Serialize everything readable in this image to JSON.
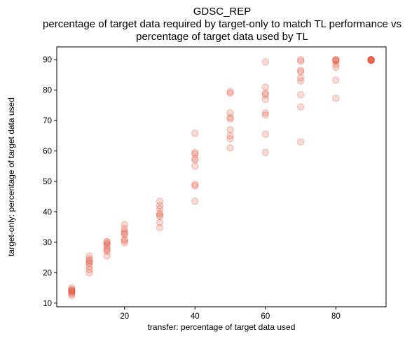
{
  "chart_data": {
    "type": "scatter",
    "title_lines": [
      "GDSC_REP",
      "percentage of target data required by target-only to match TL performance vs",
      "percentage of target data used by TL"
    ],
    "xlabel": "transfer: percentage of target data used",
    "ylabel": "target-only: percentage of target data used",
    "xlim": [
      0.75,
      94.25
    ],
    "ylim": [
      8.8,
      94.2
    ],
    "x_ticks": [
      20,
      40,
      60,
      80
    ],
    "y_ticks": [
      10,
      20,
      30,
      40,
      50,
      60,
      70,
      80,
      90
    ],
    "grid": false,
    "color": "#e34a33",
    "points": [
      {
        "x": 5,
        "y": 12.5
      },
      {
        "x": 5,
        "y": 13.0
      },
      {
        "x": 5,
        "y": 13.5
      },
      {
        "x": 5,
        "y": 14.0
      },
      {
        "x": 5,
        "y": 14.5
      },
      {
        "x": 5,
        "y": 15.0
      },
      {
        "x": 5,
        "y": 13.8
      },
      {
        "x": 5,
        "y": 14.2
      },
      {
        "x": 10,
        "y": 20.0
      },
      {
        "x": 10,
        "y": 21.0
      },
      {
        "x": 10,
        "y": 22.0
      },
      {
        "x": 10,
        "y": 23.0
      },
      {
        "x": 10,
        "y": 23.5
      },
      {
        "x": 10,
        "y": 24.0
      },
      {
        "x": 10,
        "y": 24.5
      },
      {
        "x": 10,
        "y": 25.5
      },
      {
        "x": 15,
        "y": 25.5
      },
      {
        "x": 15,
        "y": 27.0
      },
      {
        "x": 15,
        "y": 27.5
      },
      {
        "x": 15,
        "y": 28.0
      },
      {
        "x": 15,
        "y": 29.0
      },
      {
        "x": 15,
        "y": 29.5
      },
      {
        "x": 15,
        "y": 30.0
      },
      {
        "x": 15,
        "y": 30.3
      },
      {
        "x": 20,
        "y": 29.8
      },
      {
        "x": 20,
        "y": 30.5
      },
      {
        "x": 20,
        "y": 31.0
      },
      {
        "x": 20,
        "y": 32.5
      },
      {
        "x": 20,
        "y": 33.0
      },
      {
        "x": 20,
        "y": 33.5
      },
      {
        "x": 20,
        "y": 34.5
      },
      {
        "x": 20,
        "y": 35.8
      },
      {
        "x": 30,
        "y": 34.8
      },
      {
        "x": 30,
        "y": 36.5
      },
      {
        "x": 30,
        "y": 38.5
      },
      {
        "x": 30,
        "y": 39.0
      },
      {
        "x": 30,
        "y": 39.5
      },
      {
        "x": 30,
        "y": 41.0
      },
      {
        "x": 30,
        "y": 42.0
      },
      {
        "x": 30,
        "y": 43.5
      },
      {
        "x": 40,
        "y": 43.5
      },
      {
        "x": 40,
        "y": 48.5
      },
      {
        "x": 40,
        "y": 49.0
      },
      {
        "x": 40,
        "y": 55.0
      },
      {
        "x": 40,
        "y": 57.0
      },
      {
        "x": 40,
        "y": 57.5
      },
      {
        "x": 40,
        "y": 59.0
      },
      {
        "x": 40,
        "y": 59.5
      },
      {
        "x": 40,
        "y": 65.8
      },
      {
        "x": 50,
        "y": 61.0
      },
      {
        "x": 50,
        "y": 64.0
      },
      {
        "x": 50,
        "y": 65.0
      },
      {
        "x": 50,
        "y": 67.0
      },
      {
        "x": 50,
        "y": 70.5
      },
      {
        "x": 50,
        "y": 71.0
      },
      {
        "x": 50,
        "y": 72.5
      },
      {
        "x": 50,
        "y": 79.0
      },
      {
        "x": 50,
        "y": 79.5
      },
      {
        "x": 60,
        "y": 59.5
      },
      {
        "x": 60,
        "y": 65.5
      },
      {
        "x": 60,
        "y": 71.8
      },
      {
        "x": 60,
        "y": 72.5
      },
      {
        "x": 60,
        "y": 77.0
      },
      {
        "x": 60,
        "y": 78.5
      },
      {
        "x": 60,
        "y": 79.0
      },
      {
        "x": 60,
        "y": 81.0
      },
      {
        "x": 60,
        "y": 89.3
      },
      {
        "x": 70,
        "y": 63.0
      },
      {
        "x": 70,
        "y": 74.5
      },
      {
        "x": 70,
        "y": 78.5
      },
      {
        "x": 70,
        "y": 83.0
      },
      {
        "x": 70,
        "y": 84.0
      },
      {
        "x": 70,
        "y": 86.0
      },
      {
        "x": 70,
        "y": 86.5
      },
      {
        "x": 70,
        "y": 89.5
      },
      {
        "x": 70,
        "y": 90.0
      },
      {
        "x": 80,
        "y": 77.3
      },
      {
        "x": 80,
        "y": 83.3
      },
      {
        "x": 80,
        "y": 87.5
      },
      {
        "x": 80,
        "y": 88.5
      },
      {
        "x": 80,
        "y": 89.5
      },
      {
        "x": 80,
        "y": 89.8
      },
      {
        "x": 80,
        "y": 90.0
      },
      {
        "x": 80,
        "y": 90.0
      },
      {
        "x": 90,
        "y": 89.7
      },
      {
        "x": 90,
        "y": 89.8
      },
      {
        "x": 90,
        "y": 89.9
      },
      {
        "x": 90,
        "y": 90.0
      },
      {
        "x": 90,
        "y": 90.0
      },
      {
        "x": 90,
        "y": 90.0
      },
      {
        "x": 90,
        "y": 90.0
      },
      {
        "x": 90,
        "y": 90.0
      }
    ]
  }
}
